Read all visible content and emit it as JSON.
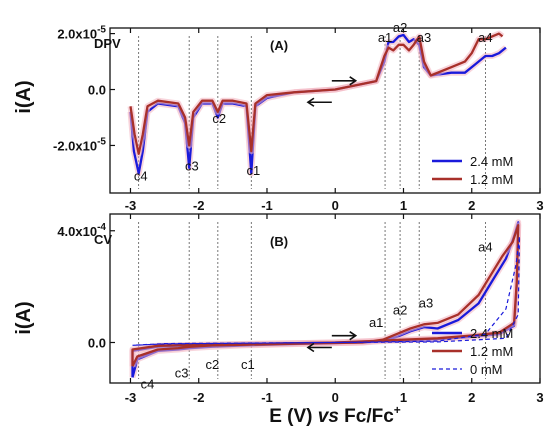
{
  "chart_data": [
    {
      "id": "A",
      "type": "line",
      "technique": "DPV",
      "panel_label": "(A)",
      "technique_label": "DPV",
      "ylabel": "i(A)",
      "xlim": [
        -3.3,
        3.0
      ],
      "ylim": [
        -3.7e-05,
        2.2e-05
      ],
      "yticks": [
        2e-05,
        0.0,
        -2e-05
      ],
      "ytick_labels": [
        "2.0x10-5",
        "0.0",
        "-2.0x10-5"
      ],
      "colors": {
        "2.4 mM": "#1a1adb",
        "1.2 mM": "#a8302a"
      },
      "series": [
        {
          "name": "2.4 mM",
          "points": [
            [
              -3.0,
              -8e-06
            ],
            [
              -2.95,
              -2.2e-05
            ],
            [
              -2.88,
              -3e-05
            ],
            [
              -2.82,
              -2.2e-05
            ],
            [
              -2.75,
              -8e-06
            ],
            [
              -2.6,
              -5e-06
            ],
            [
              -2.3,
              -6e-06
            ],
            [
              -2.2,
              -1.2e-05
            ],
            [
              -2.14,
              -2.8e-05
            ],
            [
              -2.08,
              -1e-05
            ],
            [
              -1.95,
              -5e-06
            ],
            [
              -1.8,
              -5e-06
            ],
            [
              -1.72,
              -1e-05
            ],
            [
              -1.65,
              -5e-06
            ],
            [
              -1.5,
              -5e-06
            ],
            [
              -1.3,
              -6e-06
            ],
            [
              -1.23,
              -3e-05
            ],
            [
              -1.17,
              -6e-06
            ],
            [
              -1.0,
              -3e-06
            ],
            [
              -0.6,
              -1e-06
            ],
            [
              0.0,
              0.0
            ],
            [
              0.6,
              3e-06
            ],
            [
              0.72,
              1e-05
            ],
            [
              0.78,
              1.7e-05
            ],
            [
              0.85,
              1.7e-05
            ],
            [
              0.93,
              1.9e-05
            ],
            [
              1.0,
              1.95e-05
            ],
            [
              1.08,
              1.7e-05
            ],
            [
              1.15,
              1.8e-05
            ],
            [
              1.23,
              1.6e-05
            ],
            [
              1.3,
              8e-06
            ],
            [
              1.4,
              5e-06
            ],
            [
              1.7,
              6e-06
            ],
            [
              1.9,
              6e-06
            ],
            [
              2.05,
              9e-06
            ],
            [
              2.2,
              1.2e-05
            ],
            [
              2.3,
              1.2e-05
            ],
            [
              2.4,
              1.3e-05
            ],
            [
              2.5,
              1.5e-05
            ]
          ]
        },
        {
          "name": "1.2 mM",
          "points": [
            [
              -3.0,
              -6e-06
            ],
            [
              -2.94,
              -1.6e-05
            ],
            [
              -2.88,
              -2.3e-05
            ],
            [
              -2.82,
              -1.6e-05
            ],
            [
              -2.75,
              -6e-06
            ],
            [
              -2.6,
              -4e-06
            ],
            [
              -2.3,
              -5e-06
            ],
            [
              -2.2,
              -1e-05
            ],
            [
              -2.14,
              -2e-05
            ],
            [
              -2.08,
              -8e-06
            ],
            [
              -1.95,
              -4e-06
            ],
            [
              -1.8,
              -4e-06
            ],
            [
              -1.72,
              -8e-06
            ],
            [
              -1.65,
              -4e-06
            ],
            [
              -1.5,
              -4e-06
            ],
            [
              -1.3,
              -5e-06
            ],
            [
              -1.23,
              -2.2e-05
            ],
            [
              -1.17,
              -5e-06
            ],
            [
              -1.0,
              -2e-06
            ],
            [
              -0.6,
              -1e-06
            ],
            [
              0.0,
              0.0
            ],
            [
              0.6,
              3e-06
            ],
            [
              0.72,
              1.2e-05
            ],
            [
              0.78,
              1.5e-05
            ],
            [
              0.85,
              1.4e-05
            ],
            [
              0.93,
              1.6e-05
            ],
            [
              1.0,
              1.6e-05
            ],
            [
              1.08,
              1.4e-05
            ],
            [
              1.15,
              1.6e-05
            ],
            [
              1.23,
              1.9e-05
            ],
            [
              1.3,
              1e-05
            ],
            [
              1.4,
              5e-06
            ],
            [
              1.7,
              8e-06
            ],
            [
              1.9,
              1e-05
            ],
            [
              2.0,
              1.3e-05
            ],
            [
              2.1,
              1.8e-05
            ],
            [
              2.2,
              1.8e-05
            ],
            [
              2.3,
              1.9e-05
            ],
            [
              2.4,
              2e-05
            ],
            [
              2.45,
              1.9e-05
            ]
          ]
        }
      ],
      "peak_labels": [
        {
          "text": "a1",
          "x": 0.73,
          "y": 1.7e-05
        },
        {
          "text": "a2",
          "x": 0.95,
          "y": 2.05e-05
        },
        {
          "text": "a3",
          "x": 1.3,
          "y": 1.7e-05
        },
        {
          "text": "a4",
          "x": 2.2,
          "y": 1.7e-05
        },
        {
          "text": "c1",
          "x": -1.2,
          "y": -3.05e-05
        },
        {
          "text": "c2",
          "x": -1.7,
          "y": -1.2e-05
        },
        {
          "text": "c3",
          "x": -2.1,
          "y": -2.9e-05
        },
        {
          "text": "c4",
          "x": -2.85,
          "y": -3.25e-05
        }
      ],
      "legend": {
        "position": "bottom-right",
        "entries": [
          "2.4 mM",
          "1.2 mM"
        ]
      }
    },
    {
      "id": "B",
      "type": "line",
      "technique": "CV",
      "panel_label": "(B)",
      "technique_label": "CV",
      "xlabel_parts": [
        "E (V) ",
        "vs",
        " Fc/Fc",
        "+"
      ],
      "ylabel": "i(A)",
      "xlim": [
        -3.3,
        3.0
      ],
      "ylim": [
        -0.000145,
        0.00046
      ],
      "yticks": [
        0.0004,
        0.0
      ],
      "ytick_labels": [
        "4.0x10-4",
        "0.0"
      ],
      "xticks": [
        -3,
        -2,
        -1,
        0,
        1,
        2,
        3
      ],
      "xtick_labels": [
        "-3",
        "-2",
        "-1",
        "0",
        "1",
        "2",
        "3"
      ],
      "colors": {
        "2.4 mM": "#1a1adb",
        "1.2 mM": "#a8302a",
        "0 mM": "#1a1adb"
      },
      "series": [
        {
          "name": "2.4 mM",
          "points": [
            [
              -2.97,
              -0.000125
            ],
            [
              -2.9,
              -6e-05
            ],
            [
              -2.6,
              -3e-05
            ],
            [
              -2.3,
              -2.5e-05
            ],
            [
              -2.12,
              -2e-05
            ],
            [
              -1.8,
              -1.5e-05
            ],
            [
              -1.3,
              -1e-05
            ],
            [
              -0.5,
              -5e-06
            ],
            [
              0.4,
              0.0
            ],
            [
              0.7,
              5e-06
            ],
            [
              0.9,
              2e-05
            ],
            [
              1.1,
              4e-05
            ],
            [
              1.3,
              5.5e-05
            ],
            [
              1.5,
              5e-05
            ],
            [
              1.8,
              8e-05
            ],
            [
              2.1,
              0.00014
            ],
            [
              2.3,
              0.00022
            ],
            [
              2.5,
              0.0003
            ],
            [
              2.62,
              0.00038
            ],
            [
              2.68,
              0.00043
            ],
            [
              2.66,
              0.0002
            ],
            [
              2.62,
              6e-05
            ],
            [
              2.4,
              3e-05
            ],
            [
              2.0,
              2e-05
            ],
            [
              1.5,
              1.2e-05
            ],
            [
              1.0,
              8e-06
            ],
            [
              0.5,
              4e-06
            ],
            [
              0.0,
              0.0
            ],
            [
              -1.0,
              -5e-06
            ],
            [
              -2.0,
              -1e-05
            ],
            [
              -2.6,
              -1.5e-05
            ],
            [
              -2.97,
              -3e-05
            ],
            [
              -2.97,
              -0.000125
            ]
          ]
        },
        {
          "name": "1.2 mM",
          "points": [
            [
              -2.97,
              -8.5e-05
            ],
            [
              -2.9,
              -5e-05
            ],
            [
              -2.6,
              -2.5e-05
            ],
            [
              -2.3,
              -2e-05
            ],
            [
              -2.12,
              -1.5e-05
            ],
            [
              -1.8,
              -1e-05
            ],
            [
              -1.3,
              -8e-06
            ],
            [
              -0.5,
              -4e-06
            ],
            [
              0.4,
              0.0
            ],
            [
              0.7,
              1e-05
            ],
            [
              0.9,
              3e-05
            ],
            [
              1.1,
              5e-05
            ],
            [
              1.3,
              6.5e-05
            ],
            [
              1.5,
              7e-05
            ],
            [
              1.8,
              0.0001
            ],
            [
              2.1,
              0.00017
            ],
            [
              2.3,
              0.00025
            ],
            [
              2.45,
              0.00031
            ],
            [
              2.6,
              0.00036
            ],
            [
              2.68,
              0.00042
            ],
            [
              2.66,
              0.00022
            ],
            [
              2.62,
              7e-05
            ],
            [
              2.4,
              3.5e-05
            ],
            [
              2.0,
              2.5e-05
            ],
            [
              1.5,
              1.5e-05
            ],
            [
              1.0,
              1e-05
            ],
            [
              0.5,
              5e-06
            ],
            [
              0.0,
              0.0
            ],
            [
              -1.0,
              -4e-06
            ],
            [
              -2.0,
              -8e-06
            ],
            [
              -2.6,
              -1.2e-05
            ],
            [
              -2.97,
              -2.5e-05
            ],
            [
              -2.97,
              -8.5e-05
            ]
          ]
        },
        {
          "name": "0 mM",
          "dashed": true,
          "points": [
            [
              -2.97,
              -1e-05
            ],
            [
              -2.5,
              -5e-06
            ],
            [
              -1.5,
              -3e-06
            ],
            [
              0.0,
              0.0
            ],
            [
              1.5,
              5e-06
            ],
            [
              2.2,
              3e-05
            ],
            [
              2.5,
              0.00012
            ],
            [
              2.65,
              0.00028
            ],
            [
              2.7,
              0.00038
            ],
            [
              2.68,
              0.0001
            ],
            [
              2.5,
              1.5e-05
            ],
            [
              1.5,
              2e-06
            ],
            [
              0.0,
              0.0
            ],
            [
              -1.5,
              -2e-06
            ],
            [
              -2.5,
              -4e-06
            ],
            [
              -2.97,
              -1e-05
            ]
          ]
        }
      ],
      "peak_labels": [
        {
          "text": "a1",
          "x": 0.6,
          "y": 5.5e-05
        },
        {
          "text": "a2",
          "x": 0.95,
          "y": 0.0001
        },
        {
          "text": "a3",
          "x": 1.33,
          "y": 0.000125
        },
        {
          "text": "a4",
          "x": 2.2,
          "y": 0.000325
        },
        {
          "text": "c1",
          "x": -1.28,
          "y": -9.5e-05
        },
        {
          "text": "c2",
          "x": -1.8,
          "y": -9.5e-05
        },
        {
          "text": "c3",
          "x": -2.25,
          "y": -0.000125
        },
        {
          "text": "c4",
          "x": -2.75,
          "y": -0.000165
        }
      ],
      "legend": {
        "position": "bottom-right",
        "entries": [
          "2.4 mM",
          "1.2 mM",
          "0 mM"
        ]
      }
    }
  ],
  "guide_lines_x": [
    -2.88,
    -2.14,
    -1.72,
    -1.23,
    0.73,
    0.95,
    1.23,
    2.2
  ]
}
